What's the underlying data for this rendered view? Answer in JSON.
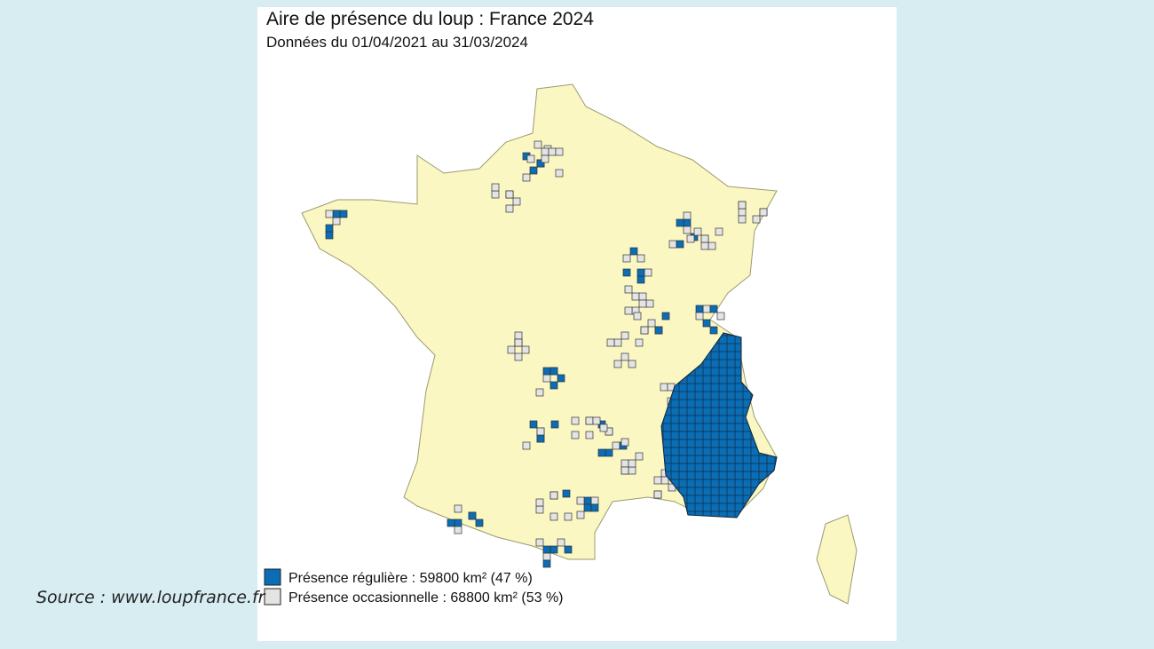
{
  "header": {
    "title": "Aire de présence du loup : France 2024",
    "subtitle": "Données du 01/04/2021 au 31/03/2024"
  },
  "legend": [
    "Présence régulière : 59800 km² (47 %)",
    "Présence occasionnelle : 68800 km² (53 %)"
  ],
  "source": "Source : www.loupfrance.fr"
}
